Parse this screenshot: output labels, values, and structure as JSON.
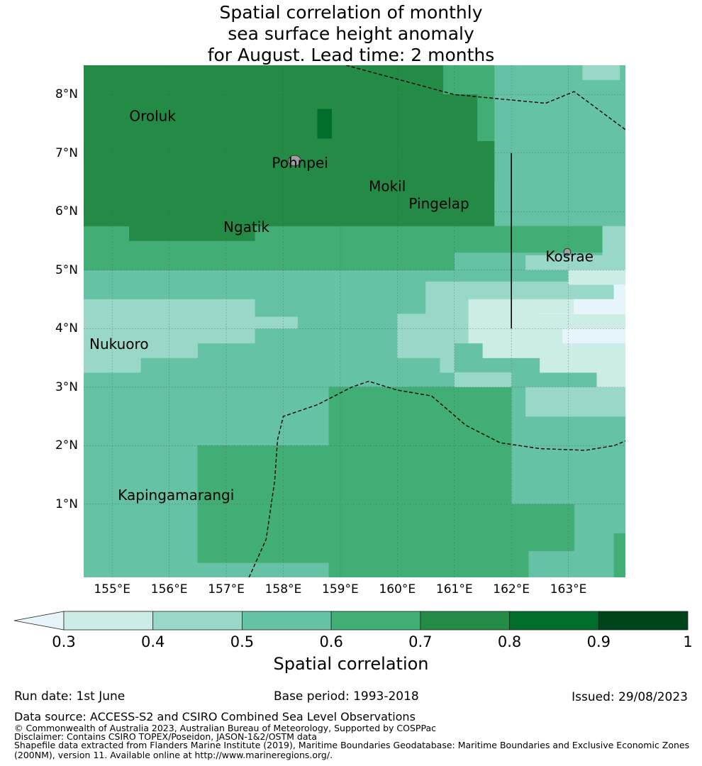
{
  "title": {
    "line1": "Spatial correlation of monthly",
    "line2": "sea surface height anomaly",
    "line3": "for August. Lead time: 2 months"
  },
  "map": {
    "lon_range": [
      154.5,
      164.0
    ],
    "lat_range": [
      -0.25,
      8.5
    ],
    "lat_ticks": [
      {
        "value": 1,
        "label": "1°N"
      },
      {
        "value": 2,
        "label": "2°N"
      },
      {
        "value": 3,
        "label": "3°N"
      },
      {
        "value": 4,
        "label": "4°N"
      },
      {
        "value": 5,
        "label": "5°N"
      },
      {
        "value": 6,
        "label": "6°N"
      },
      {
        "value": 7,
        "label": "7°N"
      },
      {
        "value": 8,
        "label": "8°N"
      }
    ],
    "lon_ticks": [
      {
        "value": 155,
        "label": "155°E"
      },
      {
        "value": 156,
        "label": "156°E"
      },
      {
        "value": 157,
        "label": "157°E"
      },
      {
        "value": 158,
        "label": "158°E"
      },
      {
        "value": 159,
        "label": "159°E"
      },
      {
        "value": 160,
        "label": "160°E"
      },
      {
        "value": 161,
        "label": "161°E"
      },
      {
        "value": 162,
        "label": "162°E"
      },
      {
        "value": 163,
        "label": "163°E"
      }
    ],
    "grid": true,
    "places": [
      {
        "label": "Oroluk",
        "lon": 155.3,
        "lat": 7.55
      },
      {
        "label": "Pohnpei",
        "lon": 157.8,
        "lat": 6.75
      },
      {
        "label": "Mokil",
        "lon": 159.5,
        "lat": 6.35
      },
      {
        "label": "Pingelap",
        "lon": 160.2,
        "lat": 6.05
      },
      {
        "label": "Ngatik",
        "lon": 156.95,
        "lat": 5.65
      },
      {
        "label": "Kosrae",
        "lon": 162.6,
        "lat": 5.15
      },
      {
        "label": "Nukuoro",
        "lon": 154.6,
        "lat": 3.65
      },
      {
        "label": "Kapingamarangi",
        "lon": 155.1,
        "lat": 1.07
      }
    ],
    "islands": [
      {
        "name": "pohnpei-island",
        "lon": 158.2,
        "lat": 6.87,
        "rx": 0.11,
        "ry": 0.09
      },
      {
        "name": "kosrae-island",
        "lon": 162.98,
        "lat": 5.31,
        "rx": 0.06,
        "ry": 0.06
      }
    ],
    "colors": {
      "land": "#a0a0a0",
      "grid": "#555555",
      "boundary": "#000000"
    },
    "regions": [
      {
        "range": "0.5-0.6",
        "value": 0.55,
        "poly": [
          [
            154.5,
            8.5
          ],
          [
            164,
            8.5
          ],
          [
            164,
            -0.25
          ],
          [
            154.5,
            -0.25
          ]
        ]
      },
      {
        "range": "0.6-0.7",
        "value": 0.65,
        "poly": [
          [
            154.5,
            5.75
          ],
          [
            164,
            5.75
          ],
          [
            164,
            5.3
          ],
          [
            161,
            5.3
          ],
          [
            161,
            5.0
          ],
          [
            154.5,
            5.0
          ]
        ]
      },
      {
        "range": "0.6-0.7",
        "value": 0.65,
        "poly": [
          [
            158.8,
            3.0
          ],
          [
            162,
            3.0
          ],
          [
            162,
            1.0
          ],
          [
            163.1,
            1.0
          ],
          [
            163.1,
            0.2
          ],
          [
            162.3,
            0.2
          ],
          [
            162.3,
            -0.25
          ],
          [
            158.8,
            -0.25
          ]
        ]
      },
      {
        "range": "0.6-0.7",
        "value": 0.65,
        "poly": [
          [
            156.5,
            2.0
          ],
          [
            158.8,
            2.0
          ],
          [
            158.8,
            0.0
          ],
          [
            156.5,
            0.0
          ]
        ]
      },
      {
        "range": "0.6-0.7",
        "value": 0.65,
        "poly": [
          [
            160.8,
            8.5
          ],
          [
            161.7,
            8.5
          ],
          [
            161.7,
            6.5
          ],
          [
            160.8,
            6.5
          ]
        ]
      },
      {
        "range": "0.6-0.7",
        "value": 0.65,
        "poly": [
          [
            163.8,
            0.5
          ],
          [
            164,
            0.5
          ],
          [
            164,
            -0.25
          ],
          [
            163.8,
            -0.25
          ]
        ]
      },
      {
        "range": "0.7-0.8",
        "value": 0.75,
        "poly": [
          [
            154.5,
            8.5
          ],
          [
            160.8,
            8.5
          ],
          [
            160.8,
            8.0
          ],
          [
            161.4,
            8.0
          ],
          [
            161.4,
            7.2
          ],
          [
            161.7,
            7.2
          ],
          [
            161.7,
            5.75
          ],
          [
            157.5,
            5.75
          ],
          [
            157.5,
            5.5
          ],
          [
            155.3,
            5.5
          ],
          [
            155.3,
            5.75
          ],
          [
            154.5,
            5.75
          ]
        ]
      },
      {
        "range": "0.8-0.9",
        "value": 0.85,
        "poly": [
          [
            158.6,
            7.75
          ],
          [
            158.85,
            7.75
          ],
          [
            158.85,
            7.25
          ],
          [
            158.6,
            7.25
          ]
        ]
      },
      {
        "range": "0.4-0.5",
        "value": 0.45,
        "poly": [
          [
            154.5,
            4.5
          ],
          [
            157.5,
            4.5
          ],
          [
            157.5,
            4.2
          ],
          [
            158.25,
            4.2
          ],
          [
            158.25,
            4.0
          ],
          [
            157.5,
            4.0
          ],
          [
            157.5,
            3.75
          ],
          [
            156.5,
            3.75
          ],
          [
            156.5,
            3.5
          ],
          [
            155.5,
            3.5
          ],
          [
            155.5,
            3.25
          ],
          [
            154.5,
            3.25
          ]
        ]
      },
      {
        "range": "0.4-0.5",
        "value": 0.45,
        "poly": [
          [
            160.5,
            4.8
          ],
          [
            164,
            4.8
          ],
          [
            164,
            4.5
          ],
          [
            163.5,
            4.5
          ],
          [
            163.5,
            4.25
          ],
          [
            162,
            4.25
          ],
          [
            162,
            4.0
          ],
          [
            161.25,
            4.0
          ],
          [
            161.25,
            3.75
          ],
          [
            161,
            3.75
          ],
          [
            161,
            3.25
          ],
          [
            162,
            3.25
          ],
          [
            162,
            3.0
          ],
          [
            161,
            3.0
          ],
          [
            161,
            3.25
          ],
          [
            160.75,
            3.25
          ],
          [
            160.75,
            3.5
          ],
          [
            160,
            3.5
          ],
          [
            160,
            4.25
          ],
          [
            160.5,
            4.25
          ]
        ]
      },
      {
        "range": "0.4-0.5",
        "value": 0.45,
        "poly": [
          [
            162.25,
            5.25
          ],
          [
            164,
            5.25
          ],
          [
            164,
            5.0
          ],
          [
            162.25,
            5.0
          ]
        ]
      },
      {
        "range": "0.4-0.5",
        "value": 0.45,
        "poly": [
          [
            163.6,
            5.75
          ],
          [
            164,
            5.75
          ],
          [
            164,
            5.25
          ],
          [
            163.6,
            5.25
          ]
        ]
      },
      {
        "range": "0.4-0.5",
        "value": 0.45,
        "poly": [
          [
            162.25,
            3.0
          ],
          [
            164,
            3.0
          ],
          [
            164,
            2.5
          ],
          [
            162.25,
            2.5
          ]
        ]
      },
      {
        "range": "0.4-0.5",
        "value": 0.45,
        "poly": [
          [
            163.25,
            8.5
          ],
          [
            163.9,
            8.5
          ],
          [
            163.9,
            8.25
          ],
          [
            163.25,
            8.25
          ]
        ]
      },
      {
        "range": "0.3-0.4",
        "value": 0.35,
        "poly": [
          [
            161.25,
            4.5
          ],
          [
            164,
            4.5
          ],
          [
            164,
            3.0
          ],
          [
            163.5,
            3.0
          ],
          [
            163.5,
            3.25
          ],
          [
            162.5,
            3.25
          ],
          [
            162.5,
            3.5
          ],
          [
            161.5,
            3.5
          ],
          [
            161.5,
            3.75
          ],
          [
            161.25,
            3.75
          ],
          [
            161.25,
            4.0
          ],
          [
            161.25,
            4.0
          ]
        ]
      },
      {
        "range": "0.3-0.4",
        "value": 0.35,
        "poly": [
          [
            163.0,
            5.0
          ],
          [
            164,
            5.0
          ],
          [
            164,
            4.75
          ],
          [
            163.0,
            4.75
          ]
        ]
      },
      {
        "range": "0.0-0.3",
        "value": 0.25,
        "poly": [
          [
            162.5,
            4.25
          ],
          [
            164,
            4.25
          ],
          [
            164,
            4.75
          ],
          [
            163.8,
            4.75
          ],
          [
            163.8,
            4.5
          ],
          [
            163.1,
            4.5
          ],
          [
            163.1,
            4.25
          ]
        ]
      },
      {
        "range": "0.0-0.3",
        "value": 0.25,
        "poly": [
          [
            162.9,
            4.0
          ],
          [
            164,
            4.0
          ],
          [
            164,
            3.75
          ],
          [
            162.9,
            3.75
          ]
        ]
      }
    ],
    "dashed_lines": [
      [
        [
          159.1,
          8.5
        ],
        [
          161,
          8.0
        ],
        [
          162.6,
          7.85
        ],
        [
          163.1,
          8.05
        ],
        [
          164,
          7.4
        ]
      ],
      [
        [
          157.4,
          -0.25
        ],
        [
          157.7,
          0.4
        ],
        [
          157.85,
          1.4
        ],
        [
          157.9,
          2.1
        ],
        [
          158.0,
          2.5
        ],
        [
          158.6,
          2.7
        ],
        [
          159.2,
          3.0
        ],
        [
          159.5,
          3.1
        ],
        [
          160.0,
          2.95
        ],
        [
          160.6,
          2.85
        ],
        [
          161.2,
          2.35
        ],
        [
          161.8,
          2.05
        ],
        [
          162.5,
          1.95
        ],
        [
          163.3,
          1.92
        ],
        [
          163.8,
          2.0
        ],
        [
          164,
          2.08
        ]
      ]
    ],
    "solid_lines": [
      [
        [
          162.0,
          7.0
        ],
        [
          162.0,
          4.0
        ]
      ]
    ]
  },
  "colorbar": {
    "label": "Spatial correlation",
    "ticks": [
      "0.3",
      "0.4",
      "0.5",
      "0.6",
      "0.7",
      "0.8",
      "0.9",
      "1"
    ],
    "below_color": "#e6f5f9",
    "colors": [
      "#ccece6",
      "#99d8c9",
      "#66c2a4",
      "#41ae76",
      "#238b45",
      "#006d2c",
      "#00441b"
    ]
  },
  "footer": {
    "run_date": "Run date: 1st June",
    "base_period": "Base period: 1993-2018",
    "issued": "Issued: 29/08/2023",
    "data_source": "Data source: ACCESS-S2 and CSIRO Combined Sea Level Observations",
    "copyright": "© Commonwealth of Australia 2023, Australian Bureau of Meteorology, Supported by COSPPac",
    "disclaimer": "Disclaimer: Contains CSIRO TOPEX/Poseidon, JASON-1&2/OSTM data",
    "shapefile1": "Shapefile data extracted from Flanders Marine Institute (2019), Maritime Boundaries Geodatabase: Maritime Boundaries and Exclusive Economic Zones",
    "shapefile2": "(200NM), version 11. Available online at http://www.marineregions.org/."
  }
}
